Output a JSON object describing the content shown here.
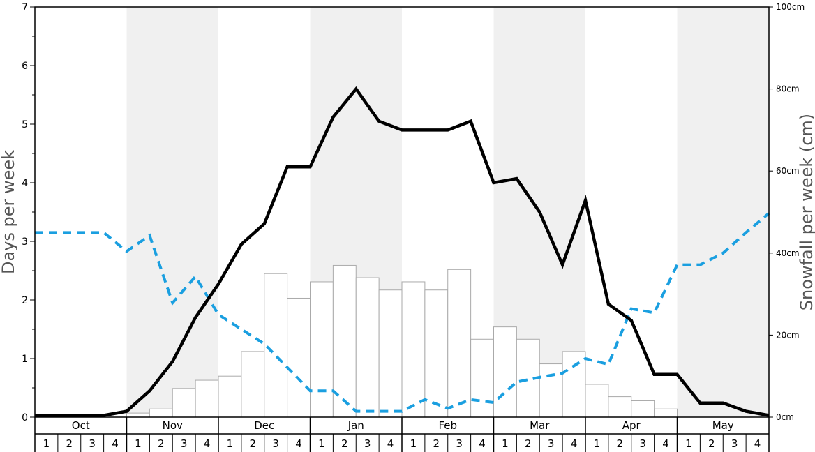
{
  "chart_data": {
    "type": "bar",
    "ylabel_left": "Days per week",
    "ylabel_right": "Snowfall per week (cm)",
    "left_axis": {
      "ylim": [
        0,
        7
      ],
      "ticks": [
        "0",
        "1",
        "2",
        "3",
        "4",
        "5",
        "6",
        "7"
      ]
    },
    "right_axis": {
      "ylim": [
        0,
        100
      ],
      "ticks": [
        "0cm",
        "20cm",
        "40cm",
        "60cm",
        "80cm",
        "100cm"
      ],
      "tick_values": [
        0,
        20,
        40,
        60,
        80,
        100
      ]
    },
    "months": [
      "Oct",
      "Nov",
      "Dec",
      "Jan",
      "Feb",
      "Mar",
      "Apr",
      "May"
    ],
    "weeks": [
      "1",
      "2",
      "3",
      "4"
    ],
    "shaded_months": [
      "Nov",
      "Jan",
      "Mar",
      "May"
    ],
    "grid": false,
    "series": [
      {
        "kind": "bar",
        "axis": "right",
        "unit": "cm",
        "color": "#ffffff",
        "stroke": "#aaaaaa",
        "values": [
          0,
          0,
          0,
          0,
          1,
          2,
          7,
          9,
          10,
          16,
          35,
          29,
          33,
          37,
          34,
          31,
          33,
          31,
          36,
          19,
          22,
          19,
          13,
          16,
          8,
          5,
          4,
          2,
          0,
          0,
          0,
          0
        ]
      },
      {
        "kind": "line",
        "axis": "left",
        "color": "#000000",
        "style": "solid",
        "values": [
          0.03,
          0.03,
          0.03,
          0.03,
          0.1,
          0.45,
          0.95,
          1.7,
          2.27,
          2.95,
          3.3,
          4.27,
          4.27,
          5.12,
          5.6,
          5.05,
          4.9,
          4.9,
          4.9,
          5.05,
          4.0,
          4.07,
          3.5,
          2.6,
          3.7,
          1.93,
          1.65,
          0.73,
          0.73,
          0.24,
          0.24,
          0.1,
          0.03
        ]
      },
      {
        "kind": "line",
        "axis": "left",
        "color": "#1a9fe0",
        "style": "dashed",
        "values": [
          3.15,
          3.15,
          3.15,
          3.15,
          2.83,
          3.1,
          1.95,
          2.4,
          1.75,
          1.5,
          1.25,
          0.85,
          0.45,
          0.45,
          0.1,
          0.1,
          0.1,
          0.3,
          0.15,
          0.3,
          0.25,
          0.6,
          0.68,
          0.75,
          1.0,
          0.9,
          1.85,
          1.78,
          2.6,
          2.6,
          2.8,
          3.15,
          3.48
        ]
      }
    ]
  }
}
